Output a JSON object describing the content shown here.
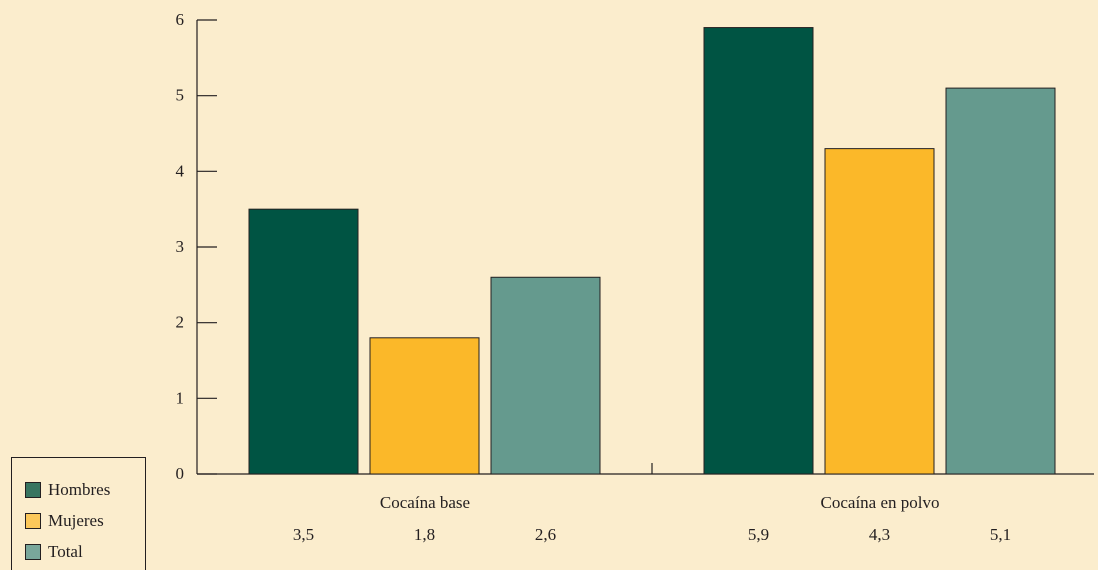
{
  "chart_data": {
    "type": "bar",
    "categories": [
      "Cocaína base",
      "Cocaína en polvo"
    ],
    "series": [
      {
        "name": "Hombres",
        "values": [
          3.5,
          5.9
        ],
        "color": "#005443"
      },
      {
        "name": "Mujeres",
        "values": [
          1.8,
          4.3
        ],
        "color": "#fbb829"
      },
      {
        "name": "Total",
        "values": [
          2.6,
          5.1
        ],
        "color": "#659a8e"
      }
    ],
    "value_labels": [
      [
        "3,5",
        "1,8",
        "2,6"
      ],
      [
        "5,9",
        "4,3",
        "5,1"
      ]
    ],
    "y_ticks": [
      "0",
      "1",
      "2",
      "3",
      "4",
      "5",
      "6"
    ],
    "ylim": [
      0,
      6
    ],
    "title": "",
    "xlabel": "",
    "ylabel": "",
    "legend_position": "bottom-left",
    "grid": false
  },
  "legend": {
    "items": [
      {
        "label": "Hombres",
        "color": "#387560"
      },
      {
        "label": "Mujeres",
        "color": "#fcc85a"
      },
      {
        "label": "Total",
        "color": "#79a79b"
      }
    ]
  },
  "colors": {
    "background": "#fbedcd",
    "axis": "#231f20"
  }
}
